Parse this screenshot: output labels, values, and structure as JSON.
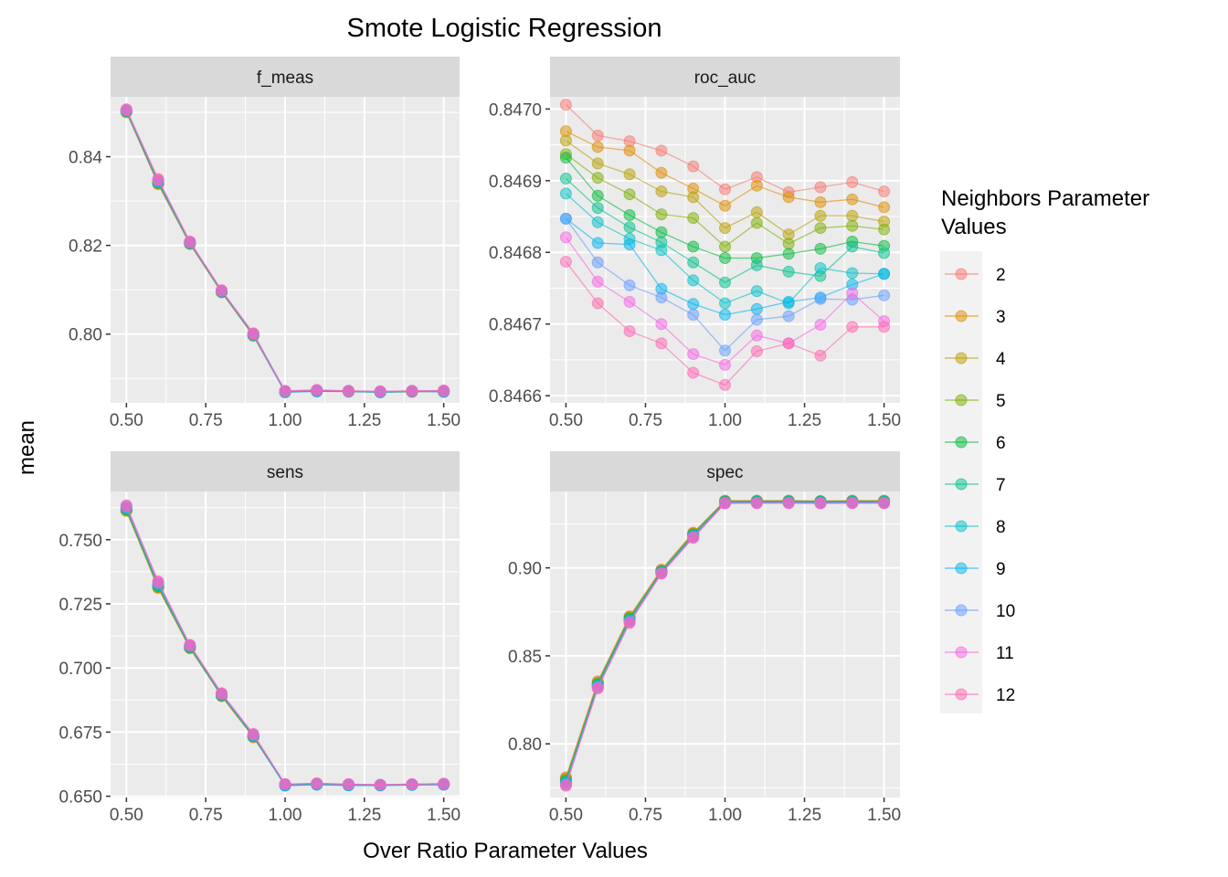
{
  "chart_data": {
    "type": "line",
    "title": "Smote Logistic Regression",
    "xlabel": "Over Ratio Parameter Values",
    "ylabel": "mean",
    "x": [
      0.5,
      0.6,
      0.7,
      0.8,
      0.9,
      1.0,
      1.1,
      1.2,
      1.3,
      1.4,
      1.5
    ],
    "x_ticks": [
      "0.50",
      "0.75",
      "1.00",
      "1.25",
      "1.50"
    ],
    "x_tick_values": [
      0.5,
      0.75,
      1.0,
      1.25,
      1.5
    ],
    "xlim": [
      0.45,
      1.55
    ],
    "legend": {
      "title": [
        "Neighbors Parameter",
        "Values"
      ],
      "placement": "right",
      "entries": [
        "2",
        "3",
        "4",
        "5",
        "6",
        "7",
        "8",
        "9",
        "10",
        "11",
        "12"
      ],
      "colors": [
        "#F8766D",
        "#DE8C00",
        "#B79F00",
        "#7CAE00",
        "#00BA38",
        "#00C08B",
        "#00BFC4",
        "#00B4F0",
        "#619CFF",
        "#F564E3",
        "#FF64B0"
      ]
    },
    "grid": true,
    "facets": [
      {
        "name": "f_meas",
        "y_ticks": [
          "0.80",
          "0.82",
          "0.84"
        ],
        "y_tick_values": [
          0.8,
          0.82,
          0.84
        ],
        "ylim": [
          0.7845,
          0.8535
        ],
        "series": [
          {
            "name": "2",
            "values": [
              0.85,
              0.8338,
              0.8203,
              0.8094,
              0.7996,
              0.7869,
              0.7871,
              0.787,
              0.7869,
              0.787,
              0.787
            ]
          },
          {
            "name": "3",
            "values": [
              0.8501,
              0.8339,
              0.8204,
              0.8095,
              0.7997,
              0.787,
              0.7872,
              0.7871,
              0.7869,
              0.787,
              0.7871
            ]
          },
          {
            "name": "4",
            "values": [
              0.8502,
              0.834,
              0.8204,
              0.8095,
              0.7997,
              0.787,
              0.7872,
              0.7871,
              0.787,
              0.7871,
              0.7871
            ]
          },
          {
            "name": "5",
            "values": [
              0.8502,
              0.8341,
              0.8205,
              0.8096,
              0.7998,
              0.7871,
              0.7872,
              0.7871,
              0.787,
              0.7871,
              0.7871
            ]
          },
          {
            "name": "6",
            "values": [
              0.8503,
              0.8342,
              0.8205,
              0.8096,
              0.7998,
              0.7871,
              0.7872,
              0.7871,
              0.787,
              0.7871,
              0.7871
            ]
          },
          {
            "name": "7",
            "values": [
              0.8503,
              0.8343,
              0.8206,
              0.8097,
              0.7999,
              0.7871,
              0.7873,
              0.7872,
              0.787,
              0.7871,
              0.7872
            ]
          },
          {
            "name": "8",
            "values": [
              0.8504,
              0.8344,
              0.8206,
              0.8097,
              0.7999,
              0.787,
              0.7871,
              0.7871,
              0.7869,
              0.7871,
              0.787
            ]
          },
          {
            "name": "9",
            "values": [
              0.8504,
              0.8345,
              0.8207,
              0.8097,
              0.7999,
              0.7869,
              0.7871,
              0.7871,
              0.7869,
              0.7871,
              0.787
            ]
          },
          {
            "name": "10",
            "values": [
              0.8505,
              0.8346,
              0.8207,
              0.8098,
              0.8,
              0.7871,
              0.7873,
              0.7872,
              0.787,
              0.7872,
              0.7872
            ]
          },
          {
            "name": "11",
            "values": [
              0.8506,
              0.8348,
              0.8208,
              0.8098,
              0.8001,
              0.7872,
              0.7874,
              0.7872,
              0.7871,
              0.7872,
              0.7872
            ]
          },
          {
            "name": "12",
            "values": [
              0.8507,
              0.835,
              0.8209,
              0.8099,
              0.8002,
              0.7872,
              0.7874,
              0.7872,
              0.7871,
              0.7872,
              0.7873
            ]
          }
        ]
      },
      {
        "name": "roc_auc",
        "y_ticks": [
          "0.8466",
          "0.8467",
          "0.8468",
          "0.8469",
          "0.8470"
        ],
        "y_tick_values": [
          0.8466,
          0.8467,
          0.8468,
          0.8469,
          0.847
        ],
        "ylim": [
          0.84659,
          0.847017
        ],
        "series": [
          {
            "name": "2",
            "values": [
              0.847006,
              0.846963,
              0.846955,
              0.846942,
              0.84692,
              0.846888,
              0.846905,
              0.846884,
              0.846891,
              0.846898,
              0.846885
            ]
          },
          {
            "name": "3",
            "values": [
              0.846969,
              0.846947,
              0.846942,
              0.846911,
              0.846889,
              0.846865,
              0.846893,
              0.846877,
              0.84687,
              0.846874,
              0.846863
            ]
          },
          {
            "name": "4",
            "values": [
              0.846956,
              0.846924,
              0.846909,
              0.846885,
              0.846877,
              0.846834,
              0.846856,
              0.846825,
              0.846851,
              0.846851,
              0.846843
            ]
          },
          {
            "name": "5",
            "values": [
              0.846937,
              0.846904,
              0.846881,
              0.846853,
              0.846848,
              0.846808,
              0.846841,
              0.846812,
              0.846834,
              0.846837,
              0.846832
            ]
          },
          {
            "name": "6",
            "values": [
              0.846932,
              0.846879,
              0.846852,
              0.846828,
              0.846808,
              0.846792,
              0.846792,
              0.846798,
              0.846805,
              0.846815,
              0.846809
            ]
          },
          {
            "name": "7",
            "values": [
              0.846903,
              0.846862,
              0.846835,
              0.846814,
              0.846786,
              0.846758,
              0.846782,
              0.846773,
              0.846767,
              0.846808,
              0.846799
            ]
          },
          {
            "name": "8",
            "values": [
              0.846882,
              0.846842,
              0.846819,
              0.846803,
              0.846761,
              0.846729,
              0.846746,
              0.846729,
              0.846778,
              0.846771,
              0.84677
            ]
          },
          {
            "name": "9",
            "values": [
              0.846847,
              0.846813,
              0.846811,
              0.846749,
              0.846728,
              0.846713,
              0.846721,
              0.846731,
              0.846737,
              0.846755,
              0.84677
            ]
          },
          {
            "name": "10",
            "values": [
              0.846847,
              0.846786,
              0.846754,
              0.846737,
              0.846713,
              0.846663,
              0.846706,
              0.846711,
              0.846735,
              0.846734,
              0.84674
            ]
          },
          {
            "name": "11",
            "values": [
              0.846821,
              0.846759,
              0.846731,
              0.8467,
              0.846658,
              0.846643,
              0.846684,
              0.846673,
              0.846699,
              0.846743,
              0.846704
            ]
          },
          {
            "name": "12",
            "values": [
              0.846787,
              0.846729,
              0.84669,
              0.846673,
              0.846632,
              0.846615,
              0.846662,
              0.846673,
              0.846656,
              0.846696,
              0.846696
            ]
          }
        ]
      },
      {
        "name": "sens",
        "y_ticks": [
          "0.650",
          "0.675",
          "0.700",
          "0.725",
          "0.750"
        ],
        "y_tick_values": [
          0.65,
          0.675,
          0.7,
          0.725,
          0.75
        ],
        "ylim": [
          0.6495,
          0.7688
        ],
        "series": [
          {
            "name": "2",
            "values": [
              0.7612,
              0.7312,
              0.7077,
              0.689,
              0.673,
              0.6543,
              0.6547,
              0.6543,
              0.6543,
              0.6545,
              0.6546
            ]
          },
          {
            "name": "3",
            "values": [
              0.7613,
              0.7313,
              0.7078,
              0.6891,
              0.6731,
              0.6544,
              0.6547,
              0.6544,
              0.6543,
              0.6545,
              0.6546
            ]
          },
          {
            "name": "4",
            "values": [
              0.7615,
              0.7315,
              0.7079,
              0.6892,
              0.6732,
              0.6544,
              0.6548,
              0.6544,
              0.6543,
              0.6545,
              0.6547
            ]
          },
          {
            "name": "5",
            "values": [
              0.7617,
              0.7317,
              0.708,
              0.6893,
              0.6733,
              0.6545,
              0.6548,
              0.6545,
              0.6544,
              0.6546,
              0.6547
            ]
          },
          {
            "name": "6",
            "values": [
              0.7619,
              0.732,
              0.7081,
              0.6894,
              0.6734,
              0.6545,
              0.6548,
              0.6545,
              0.6544,
              0.6546,
              0.6547
            ]
          },
          {
            "name": "7",
            "values": [
              0.7621,
              0.7322,
              0.7083,
              0.6895,
              0.6735,
              0.6544,
              0.6547,
              0.6544,
              0.6543,
              0.6545,
              0.6546
            ]
          },
          {
            "name": "8",
            "values": [
              0.7623,
              0.7325,
              0.7084,
              0.6896,
              0.6736,
              0.6542,
              0.6545,
              0.6543,
              0.6542,
              0.6544,
              0.6545
            ]
          },
          {
            "name": "9",
            "values": [
              0.7625,
              0.7328,
              0.7086,
              0.6897,
              0.6737,
              0.6541,
              0.6545,
              0.6542,
              0.6542,
              0.6544,
              0.6545
            ]
          },
          {
            "name": "10",
            "values": [
              0.7628,
              0.7331,
              0.7087,
              0.6899,
              0.6739,
              0.6546,
              0.6549,
              0.6546,
              0.6544,
              0.6546,
              0.6548
            ]
          },
          {
            "name": "11",
            "values": [
              0.7631,
              0.7334,
              0.7089,
              0.69,
              0.6741,
              0.6547,
              0.655,
              0.6547,
              0.6545,
              0.6547,
              0.6549
            ]
          },
          {
            "name": "12",
            "values": [
              0.7634,
              0.7338,
              0.709,
              0.6902,
              0.6743,
              0.6547,
              0.655,
              0.6547,
              0.6545,
              0.6547,
              0.6549
            ]
          }
        ]
      },
      {
        "name": "spec",
        "y_ticks": [
          "0.80",
          "0.85",
          "0.90"
        ],
        "y_tick_values": [
          0.8,
          0.85,
          0.9
        ],
        "ylim": [
          0.7695,
          0.9434
        ],
        "series": [
          {
            "name": "2",
            "values": [
              0.781,
              0.8355,
              0.8725,
              0.899,
              0.92,
              0.9382,
              0.9382,
              0.9382,
              0.938,
              0.9382,
              0.9382
            ]
          },
          {
            "name": "3",
            "values": [
              0.7805,
              0.835,
              0.8722,
              0.8987,
              0.9197,
              0.9381,
              0.9381,
              0.9381,
              0.9379,
              0.9381,
              0.9381
            ]
          },
          {
            "name": "4",
            "values": [
              0.78,
              0.8346,
              0.8718,
              0.8984,
              0.9194,
              0.9379,
              0.938,
              0.938,
              0.9378,
              0.938,
              0.938
            ]
          },
          {
            "name": "5",
            "values": [
              0.7795,
              0.8342,
              0.8714,
              0.8982,
              0.9191,
              0.9377,
              0.9378,
              0.9378,
              0.9377,
              0.9378,
              0.9378
            ]
          },
          {
            "name": "6",
            "values": [
              0.779,
              0.8338,
              0.871,
              0.8979,
              0.9188,
              0.9376,
              0.9377,
              0.9377,
              0.9376,
              0.9377,
              0.9377
            ]
          },
          {
            "name": "7",
            "values": [
              0.7785,
              0.8334,
              0.8706,
              0.8977,
              0.9185,
              0.9375,
              0.9376,
              0.9376,
              0.9375,
              0.9376,
              0.9376
            ]
          },
          {
            "name": "8",
            "values": [
              0.778,
              0.833,
              0.8702,
              0.8975,
              0.9182,
              0.9373,
              0.9374,
              0.9374,
              0.9373,
              0.9374,
              0.9374
            ]
          },
          {
            "name": "9",
            "values": [
              0.7775,
              0.8326,
              0.8698,
              0.8973,
              0.9179,
              0.9371,
              0.9372,
              0.9372,
              0.9371,
              0.9372,
              0.9372
            ]
          },
          {
            "name": "10",
            "values": [
              0.777,
              0.8322,
              0.8694,
              0.8971,
              0.9176,
              0.9369,
              0.937,
              0.937,
              0.9369,
              0.937,
              0.937
            ]
          },
          {
            "name": "11",
            "values": [
              0.7766,
              0.8318,
              0.869,
              0.8969,
              0.9173,
              0.9367,
              0.9368,
              0.9368,
              0.9367,
              0.9368,
              0.9368
            ]
          },
          {
            "name": "12",
            "values": [
              0.7762,
              0.8315,
              0.8687,
              0.8967,
              0.917,
              0.9366,
              0.9367,
              0.9367,
              0.9366,
              0.9367,
              0.9367
            ]
          }
        ]
      }
    ]
  }
}
